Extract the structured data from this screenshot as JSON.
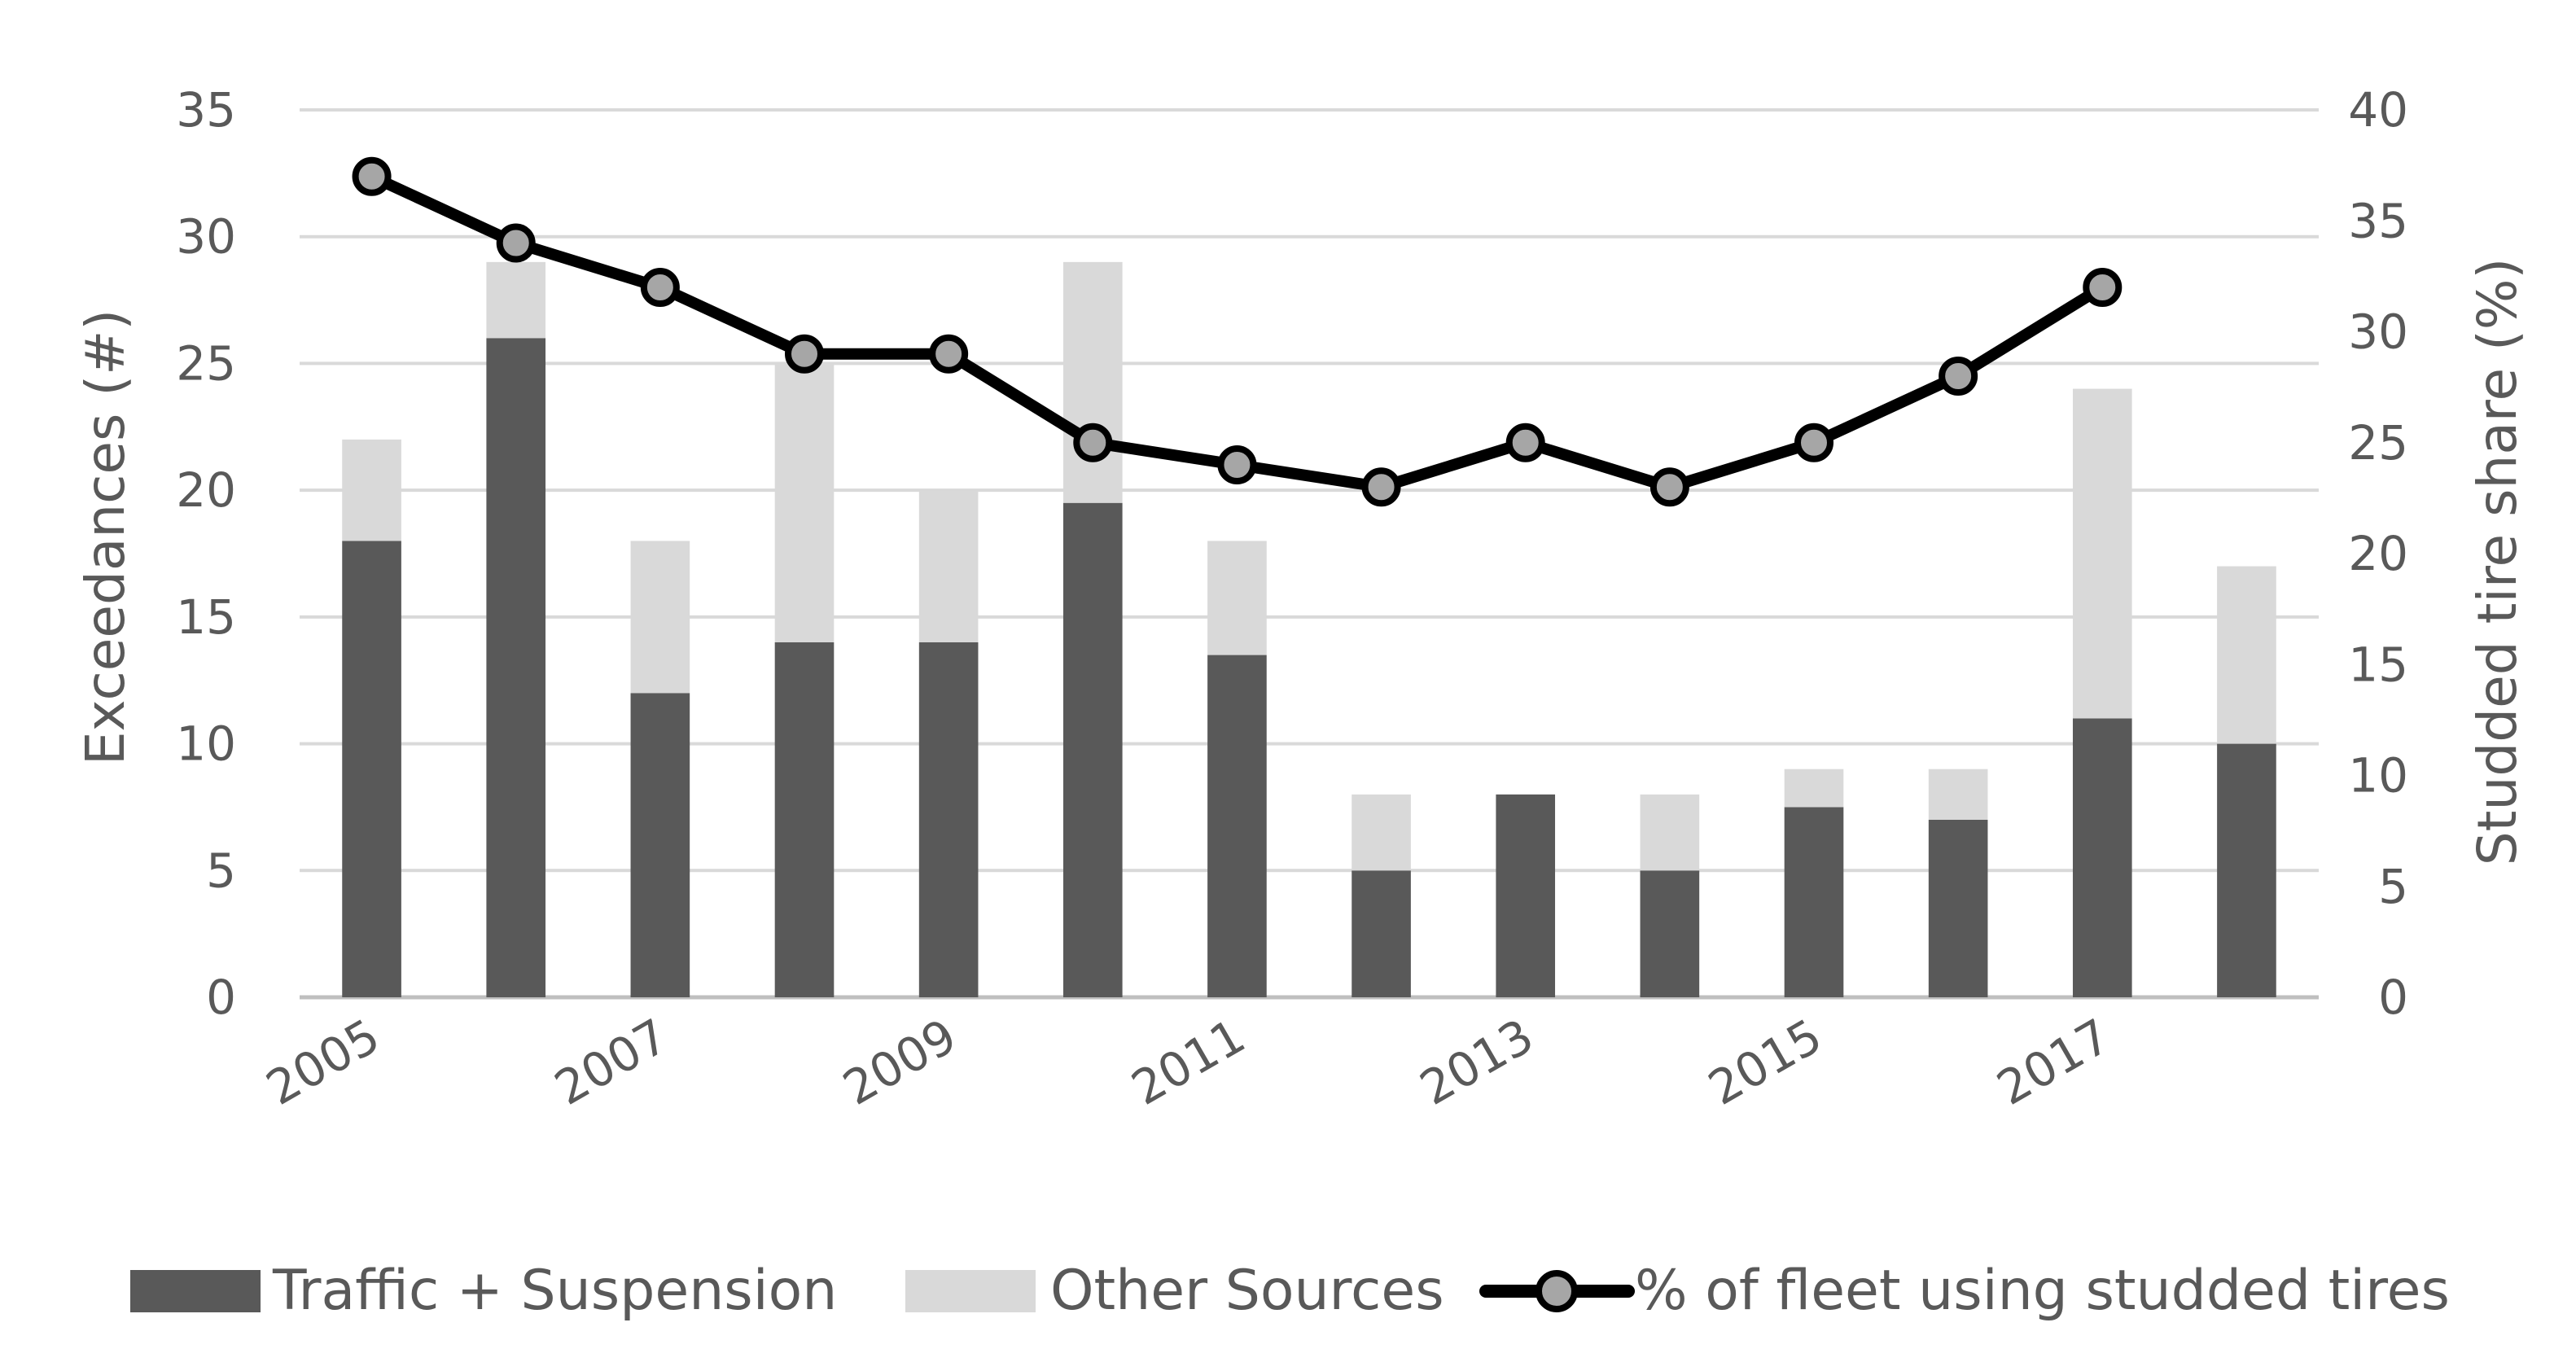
{
  "chart_data": {
    "type": "bar",
    "stacked": true,
    "categories": [
      "2005",
      "2006",
      "2007",
      "2008",
      "2009",
      "2010",
      "2011",
      "2012",
      "2013",
      "2014",
      "2015",
      "2016",
      "2017",
      "2018"
    ],
    "x_tick_labels": [
      "2005",
      "2007",
      "2009",
      "2011",
      "2013",
      "2015",
      "2017"
    ],
    "series": [
      {
        "name": "Traffic + Suspension",
        "axis": "left",
        "color": "#595959",
        "values": [
          18,
          26,
          12,
          14,
          14,
          19.5,
          13.5,
          5,
          8,
          5,
          7.5,
          7,
          11,
          10
        ]
      },
      {
        "name": "Other Sources",
        "axis": "left",
        "color": "#d9d9d9",
        "values": [
          4,
          3,
          6,
          11,
          6,
          9.5,
          4.5,
          3,
          0,
          3,
          1.5,
          2,
          13,
          7
        ]
      }
    ],
    "line_series": {
      "name": "% of fleet using studded tires",
      "axis": "right",
      "line_color": "#000000",
      "marker_color": "#a6a6a6",
      "values": [
        37,
        34,
        32,
        29,
        29,
        25,
        24,
        23,
        25,
        23,
        25,
        28,
        32,
        null
      ]
    },
    "y_left": {
      "label": "Exceedances (#)",
      "min": 0,
      "max": 35,
      "step": 5,
      "ticks": [
        "0",
        "5",
        "10",
        "15",
        "20",
        "25",
        "30",
        "35"
      ]
    },
    "y_right": {
      "label": "Studded tire share (%)",
      "min": 0,
      "max": 40,
      "step": 5,
      "ticks": [
        "0",
        "5",
        "10",
        "15",
        "20",
        "25",
        "30",
        "35",
        "40"
      ]
    },
    "gridlines": true,
    "legend_position": "bottom",
    "legend": [
      "Traffic + Suspension",
      "Other Sources",
      "% of fleet using studded tires"
    ]
  }
}
